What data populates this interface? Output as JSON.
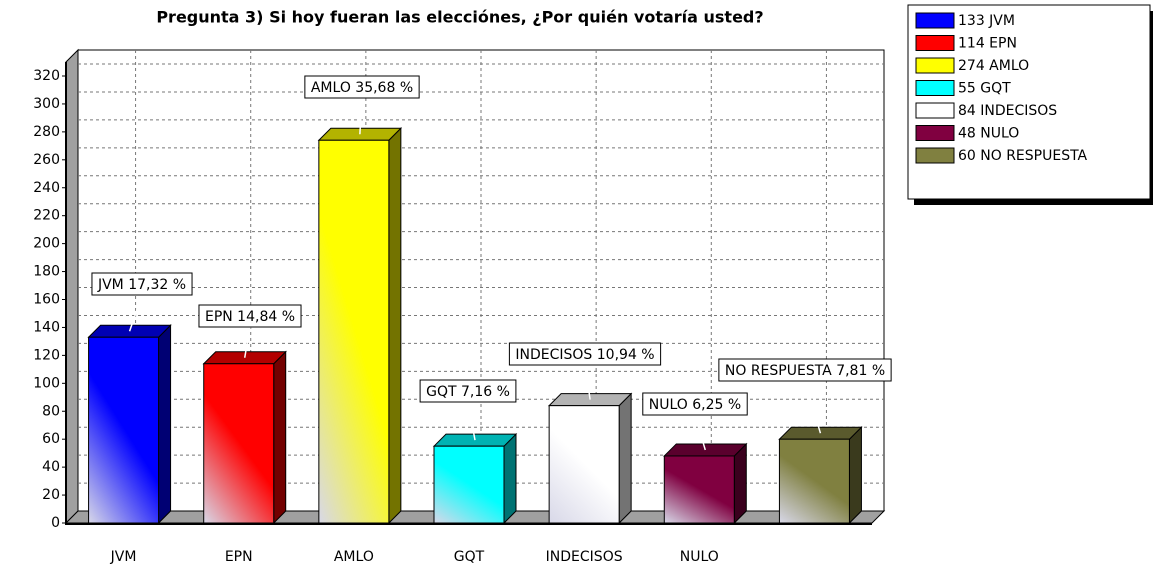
{
  "chart_data": {
    "type": "bar3d",
    "title": "Pregunta 3)  Si hoy fueran las elecciónes, ¿Por quién votaría usted?",
    "categories": [
      "JVM",
      "EPN",
      "AMLO",
      "GQT",
      "INDECISOS",
      "NULO",
      null
    ],
    "values": [
      133,
      114,
      274,
      55,
      84,
      48,
      60
    ],
    "colors": [
      "#0000ff",
      "#ff0000",
      "#ffff00",
      "#00ffff",
      "#ffffff",
      "#800040",
      "#808040"
    ],
    "data_labels": [
      "JVM 17,32 %",
      "EPN 14,84 %",
      "AMLO 35,68 %",
      "GQT 7,16 %",
      "INDECISOS 10,94 %",
      "NULO 6,25 %",
      "NO RESPUESTA 7,81 %"
    ],
    "legend": [
      "133 JVM",
      "114 EPN",
      "274 AMLO",
      "55 GQT",
      "84 INDECISOS",
      "48 NULO",
      "60 NO RESPUESTA"
    ],
    "ylim": [
      0,
      320
    ],
    "yticks": [
      0,
      20,
      40,
      60,
      80,
      100,
      120,
      140,
      160,
      180,
      200,
      220,
      240,
      260,
      280,
      300,
      320
    ],
    "grid": true
  }
}
